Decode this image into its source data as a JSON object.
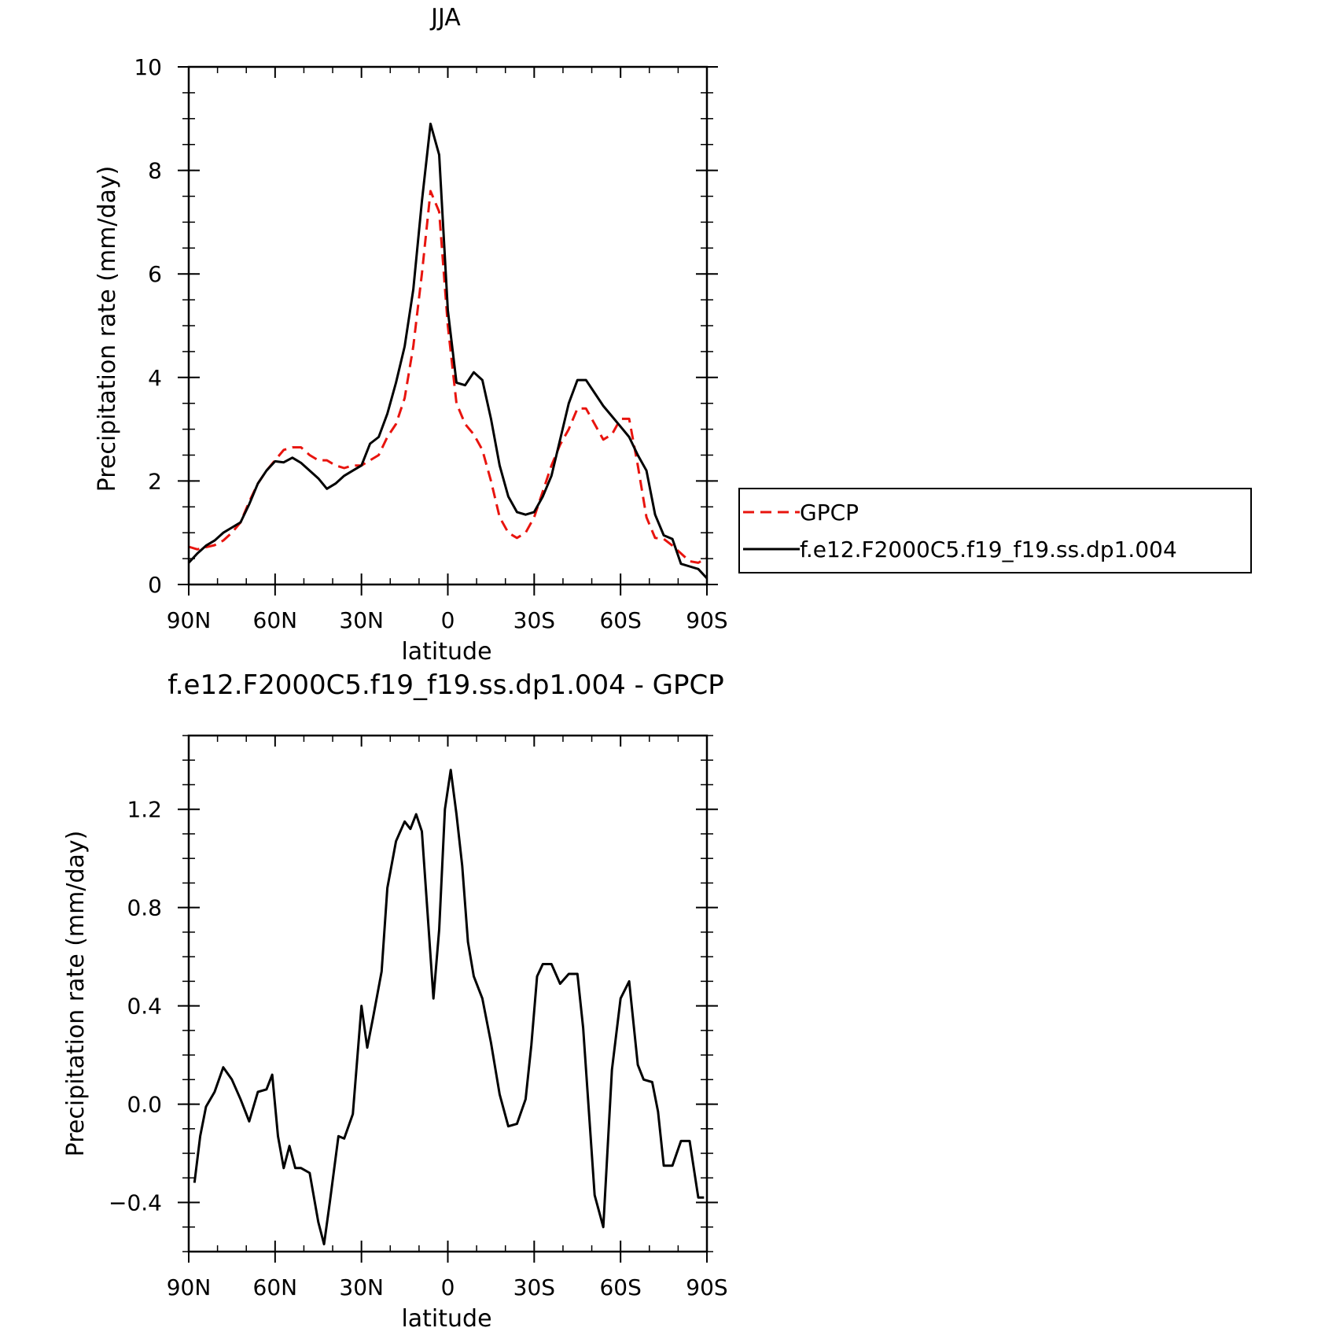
{
  "chart_data": [
    {
      "type": "line",
      "title": "JJA",
      "xlabel": "latitude",
      "ylabel": "Precipitation rate (mm/day)",
      "xlim": [
        90,
        -90
      ],
      "ylim": [
        0,
        10
      ],
      "xticks": [
        90,
        60,
        30,
        0,
        -30,
        -60,
        -90
      ],
      "xtick_labels": [
        "90N",
        "60N",
        "30N",
        "0",
        "30S",
        "60S",
        "90S"
      ],
      "yticks": [
        0,
        2,
        4,
        6,
        8,
        10
      ],
      "ytick_labels": [
        "0",
        "2",
        "4",
        "6",
        "8",
        "10"
      ],
      "legend_position": "right",
      "series": [
        {
          "name": "GPCP",
          "color": "#e8140e",
          "style": "dashed",
          "x": [
            90,
            87,
            84,
            81,
            78,
            75,
            72,
            69,
            66,
            63,
            60,
            57,
            54,
            51,
            48,
            45,
            42,
            39,
            36,
            33,
            30,
            27,
            24,
            21,
            18,
            15,
            12,
            9,
            6,
            3,
            0,
            -3,
            -6,
            -9,
            -12,
            -15,
            -18,
            -21,
            -24,
            -27,
            -30,
            -33,
            -36,
            -39,
            -42,
            -45,
            -48,
            -51,
            -54,
            -57,
            -60,
            -63,
            -66,
            -69,
            -72,
            -75,
            -78,
            -81,
            -84,
            -87,
            -90
          ],
          "values": [
            0.73,
            0.68,
            0.72,
            0.76,
            0.85,
            1.0,
            1.2,
            1.6,
            1.95,
            2.2,
            2.4,
            2.6,
            2.65,
            2.65,
            2.5,
            2.4,
            2.4,
            2.3,
            2.25,
            2.3,
            2.3,
            2.4,
            2.5,
            2.85,
            3.1,
            3.6,
            4.6,
            6.0,
            7.6,
            7.2,
            5.0,
            3.5,
            3.1,
            2.9,
            2.6,
            2.0,
            1.3,
            1.0,
            0.9,
            1.0,
            1.3,
            1.8,
            2.3,
            2.7,
            3.0,
            3.4,
            3.4,
            3.1,
            2.8,
            2.9,
            3.2,
            3.2,
            2.3,
            1.3,
            0.9,
            0.88,
            0.75,
            0.6,
            0.45,
            0.42,
            0.52
          ]
        },
        {
          "name": "f.e12.F2000C5.f19_f19.ss.dp1.004",
          "color": "#000000",
          "style": "solid",
          "x": [
            90,
            87,
            84,
            81,
            78,
            75,
            72,
            69,
            66,
            63,
            60,
            57,
            54,
            51,
            48,
            45,
            42,
            39,
            36,
            33,
            30,
            27,
            24,
            21,
            18,
            15,
            12,
            9,
            6,
            3,
            0,
            -3,
            -6,
            -9,
            -12,
            -15,
            -18,
            -21,
            -24,
            -27,
            -30,
            -33,
            -36,
            -39,
            -42,
            -45,
            -48,
            -51,
            -54,
            -57,
            -60,
            -63,
            -66,
            -69,
            -72,
            -75,
            -78,
            -81,
            -84,
            -87,
            -90
          ],
          "values": [
            0.42,
            0.6,
            0.75,
            0.85,
            1.0,
            1.1,
            1.2,
            1.55,
            1.95,
            2.2,
            2.38,
            2.36,
            2.45,
            2.35,
            2.2,
            2.05,
            1.85,
            1.95,
            2.1,
            2.2,
            2.3,
            2.72,
            2.85,
            3.3,
            3.9,
            4.6,
            5.7,
            7.4,
            8.9,
            8.3,
            5.3,
            3.9,
            3.85,
            4.1,
            3.95,
            3.2,
            2.3,
            1.7,
            1.4,
            1.35,
            1.4,
            1.7,
            2.1,
            2.8,
            3.5,
            3.95,
            3.95,
            3.7,
            3.45,
            3.25,
            3.05,
            2.85,
            2.5,
            2.2,
            1.35,
            0.95,
            0.88,
            0.4,
            0.35,
            0.3,
            0.12
          ]
        }
      ]
    },
    {
      "type": "line",
      "title": "f.e12.F2000C5.f19_f19.ss.dp1.004 - GPCP",
      "xlabel": "latitude",
      "ylabel": "Precipitation rate (mm/day)",
      "xlim": [
        90,
        -90
      ],
      "ylim": [
        -0.6,
        1.5
      ],
      "xticks": [
        90,
        60,
        30,
        0,
        -30,
        -60,
        -90
      ],
      "xtick_labels": [
        "90N",
        "60N",
        "30N",
        "0",
        "30S",
        "60S",
        "90S"
      ],
      "yticks": [
        -0.4,
        0.0,
        0.4,
        0.8,
        1.2
      ],
      "ytick_labels": [
        "−0.4",
        "0.0",
        "0.4",
        "0.8",
        "1.2"
      ],
      "series": [
        {
          "color": "#000000",
          "style": "solid",
          "x": [
            88,
            86,
            84,
            81,
            78,
            75,
            72,
            69,
            66,
            63,
            61,
            59,
            57,
            55,
            53,
            51,
            48,
            45,
            43,
            41,
            38,
            36,
            33,
            30,
            28,
            26,
            23,
            21,
            18,
            15,
            13,
            11,
            9,
            7,
            5,
            3,
            1,
            -1,
            -3,
            -5,
            -7,
            -9,
            -12,
            -15,
            -18,
            -21,
            -24,
            -27,
            -29,
            -31,
            -33,
            -36,
            -39,
            -42,
            -45,
            -47,
            -49,
            -51,
            -54,
            -57,
            -60,
            -63,
            -66,
            -68,
            -71,
            -73,
            -75,
            -78,
            -81,
            -84,
            -87,
            -89
          ],
          "values": [
            -0.32,
            -0.13,
            -0.01,
            0.05,
            0.15,
            0.1,
            0.02,
            -0.07,
            0.05,
            0.06,
            0.12,
            -0.13,
            -0.26,
            -0.17,
            -0.26,
            -0.26,
            -0.28,
            -0.48,
            -0.57,
            -0.4,
            -0.13,
            -0.14,
            -0.04,
            0.4,
            0.23,
            0.35,
            0.54,
            0.88,
            1.07,
            1.15,
            1.12,
            1.18,
            1.11,
            0.77,
            0.43,
            0.71,
            1.2,
            1.36,
            1.18,
            0.97,
            0.66,
            0.52,
            0.43,
            0.25,
            0.04,
            -0.09,
            -0.08,
            0.02,
            0.24,
            0.52,
            0.57,
            0.57,
            0.49,
            0.53,
            0.53,
            0.31,
            -0.03,
            -0.37,
            -0.5,
            0.14,
            0.43,
            0.5,
            0.16,
            0.1,
            0.09,
            -0.03,
            -0.25,
            -0.25,
            -0.15,
            -0.15,
            -0.38,
            -0.38
          ]
        }
      ]
    }
  ]
}
